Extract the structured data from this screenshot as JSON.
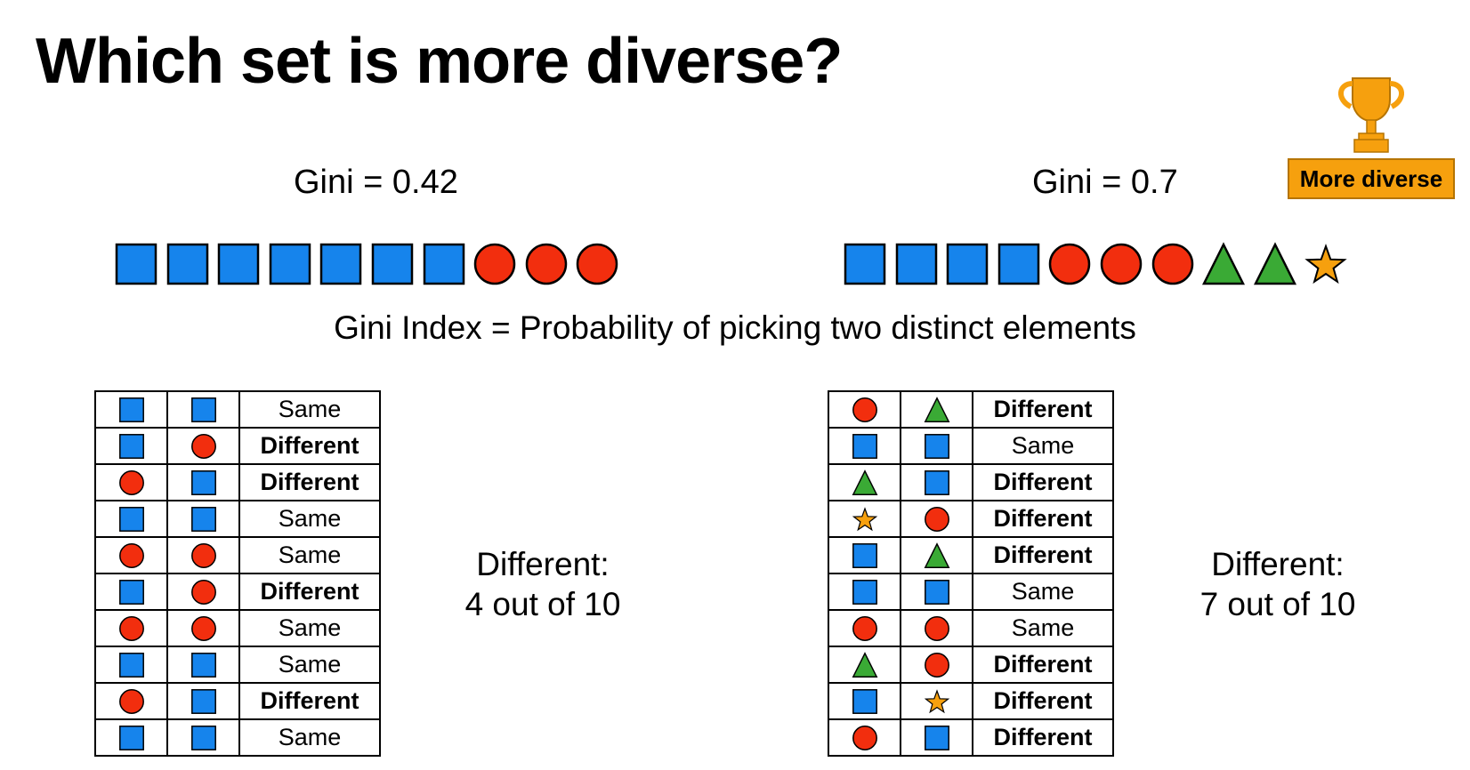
{
  "title": "Which set is more diverse?",
  "colors": {
    "square": "#1684ec",
    "circle": "#f22e0e",
    "triangle": "#3aaa35",
    "star": "#f6a00e",
    "badge": "#f6a00e"
  },
  "left_set": {
    "gini_label": "Gini = 0.42",
    "elements": [
      "square",
      "square",
      "square",
      "square",
      "square",
      "square",
      "square",
      "circle",
      "circle",
      "circle"
    ],
    "pairs": [
      {
        "a": "square",
        "b": "square",
        "result": "Same"
      },
      {
        "a": "square",
        "b": "circle",
        "result": "Different"
      },
      {
        "a": "circle",
        "b": "square",
        "result": "Different"
      },
      {
        "a": "square",
        "b": "square",
        "result": "Same"
      },
      {
        "a": "circle",
        "b": "circle",
        "result": "Same"
      },
      {
        "a": "square",
        "b": "circle",
        "result": "Different"
      },
      {
        "a": "circle",
        "b": "circle",
        "result": "Same"
      },
      {
        "a": "square",
        "b": "square",
        "result": "Same"
      },
      {
        "a": "circle",
        "b": "square",
        "result": "Different"
      },
      {
        "a": "square",
        "b": "square",
        "result": "Same"
      }
    ],
    "summary_line1": "Different:",
    "summary_line2": "4 out of 10"
  },
  "right_set": {
    "gini_label": "Gini = 0.7",
    "badge_label": "More diverse",
    "trophy_icon": "trophy-icon",
    "elements": [
      "square",
      "square",
      "square",
      "square",
      "circle",
      "circle",
      "circle",
      "triangle",
      "triangle",
      "star"
    ],
    "pairs": [
      {
        "a": "circle",
        "b": "triangle",
        "result": "Different"
      },
      {
        "a": "square",
        "b": "square",
        "result": "Same"
      },
      {
        "a": "triangle",
        "b": "square",
        "result": "Different"
      },
      {
        "a": "star",
        "b": "circle",
        "result": "Different"
      },
      {
        "a": "square",
        "b": "triangle",
        "result": "Different"
      },
      {
        "a": "square",
        "b": "square",
        "result": "Same"
      },
      {
        "a": "circle",
        "b": "circle",
        "result": "Same"
      },
      {
        "a": "triangle",
        "b": "circle",
        "result": "Different"
      },
      {
        "a": "square",
        "b": "star",
        "result": "Different"
      },
      {
        "a": "circle",
        "b": "square",
        "result": "Different"
      }
    ],
    "summary_line1": "Different:",
    "summary_line2": "7 out of 10"
  },
  "definition": "Gini Index = Probability of picking two distinct elements"
}
